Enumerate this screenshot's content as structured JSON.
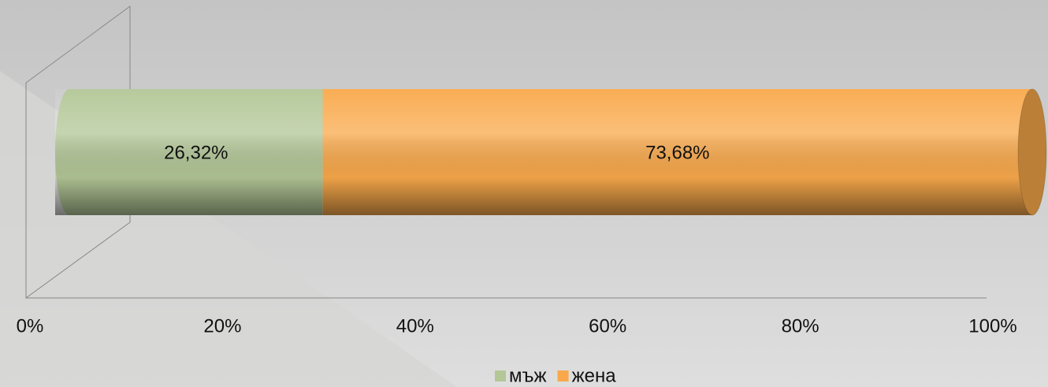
{
  "chart_data": {
    "type": "bar",
    "orientation": "horizontal",
    "stacked": true,
    "series": [
      {
        "name": "мъж",
        "color": "#b3c797",
        "values": [
          26.32
        ],
        "value_labels": [
          "26,32%"
        ]
      },
      {
        "name": "жена",
        "color": "#f9a94b",
        "values": [
          73.68
        ],
        "value_labels": [
          "73,68%"
        ]
      }
    ],
    "xlim": [
      0,
      100
    ],
    "xticks": [
      {
        "value": 0,
        "label": "0%"
      },
      {
        "value": 20,
        "label": "20%"
      },
      {
        "value": 40,
        "label": "40%"
      },
      {
        "value": 60,
        "label": "60%"
      },
      {
        "value": 80,
        "label": "80%"
      },
      {
        "value": 100,
        "label": "100%"
      }
    ],
    "legend": "bottom"
  }
}
